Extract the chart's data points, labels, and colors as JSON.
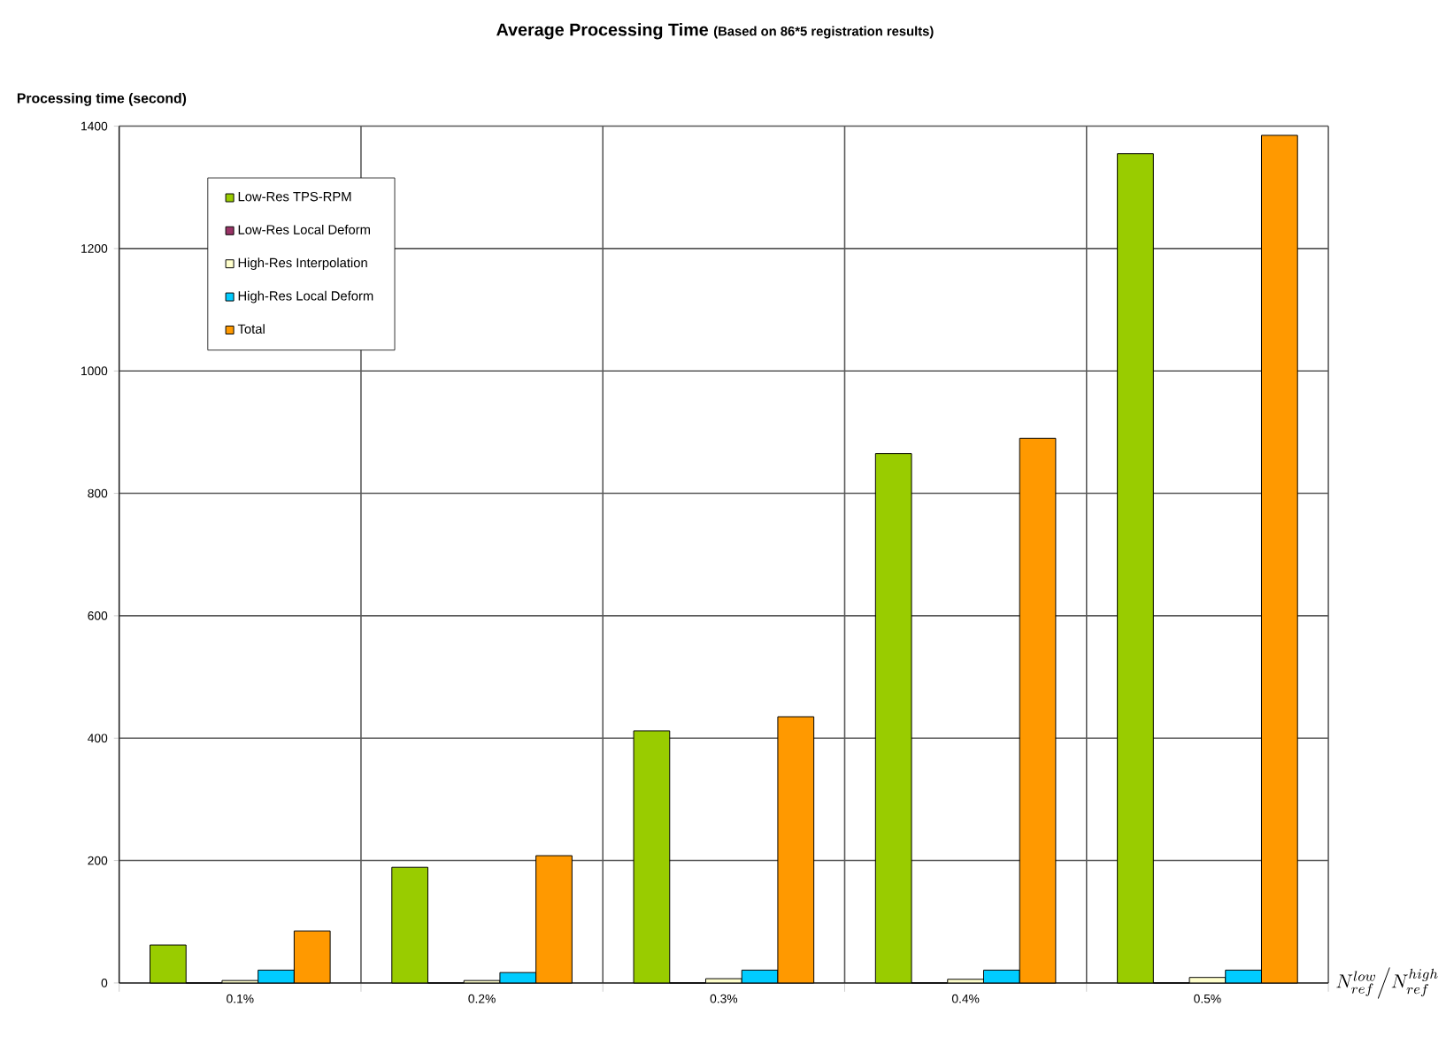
{
  "chart_data": {
    "type": "bar",
    "title": "Average Processing Time",
    "subtitle": "(Based on 86*5 registration results)",
    "ylabel": "Processing time (second)",
    "xlabel": "N_{ref}^{low}\\Big/N_{ref}^{high}",
    "categories": [
      "0.1%",
      "0.2%",
      "0.3%",
      "0.4%",
      "0.5%"
    ],
    "series": [
      {
        "name": "Low-Res TPS-RPM",
        "color": "#99cc00",
        "values": [
          62,
          189,
          412,
          865,
          1355
        ]
      },
      {
        "name": "Low-Res Local Deform",
        "color": "#993366",
        "values": [
          0,
          0,
          0,
          0,
          0
        ]
      },
      {
        "name": "High-Res Interpolation",
        "color": "#ffffcc",
        "values": [
          4,
          4,
          7,
          6,
          9
        ]
      },
      {
        "name": "High-Res Local Deform",
        "color": "#00ccff",
        "values": [
          21,
          17,
          21,
          21,
          21
        ]
      },
      {
        "name": "Total",
        "color": "#ff9900",
        "values": [
          85,
          208,
          435,
          890,
          1385
        ]
      }
    ],
    "ylim": [
      0,
      1400
    ],
    "yticks": [
      0,
      200,
      400,
      600,
      800,
      1000,
      1200,
      1400
    ],
    "grid": true,
    "legend": "top left"
  }
}
